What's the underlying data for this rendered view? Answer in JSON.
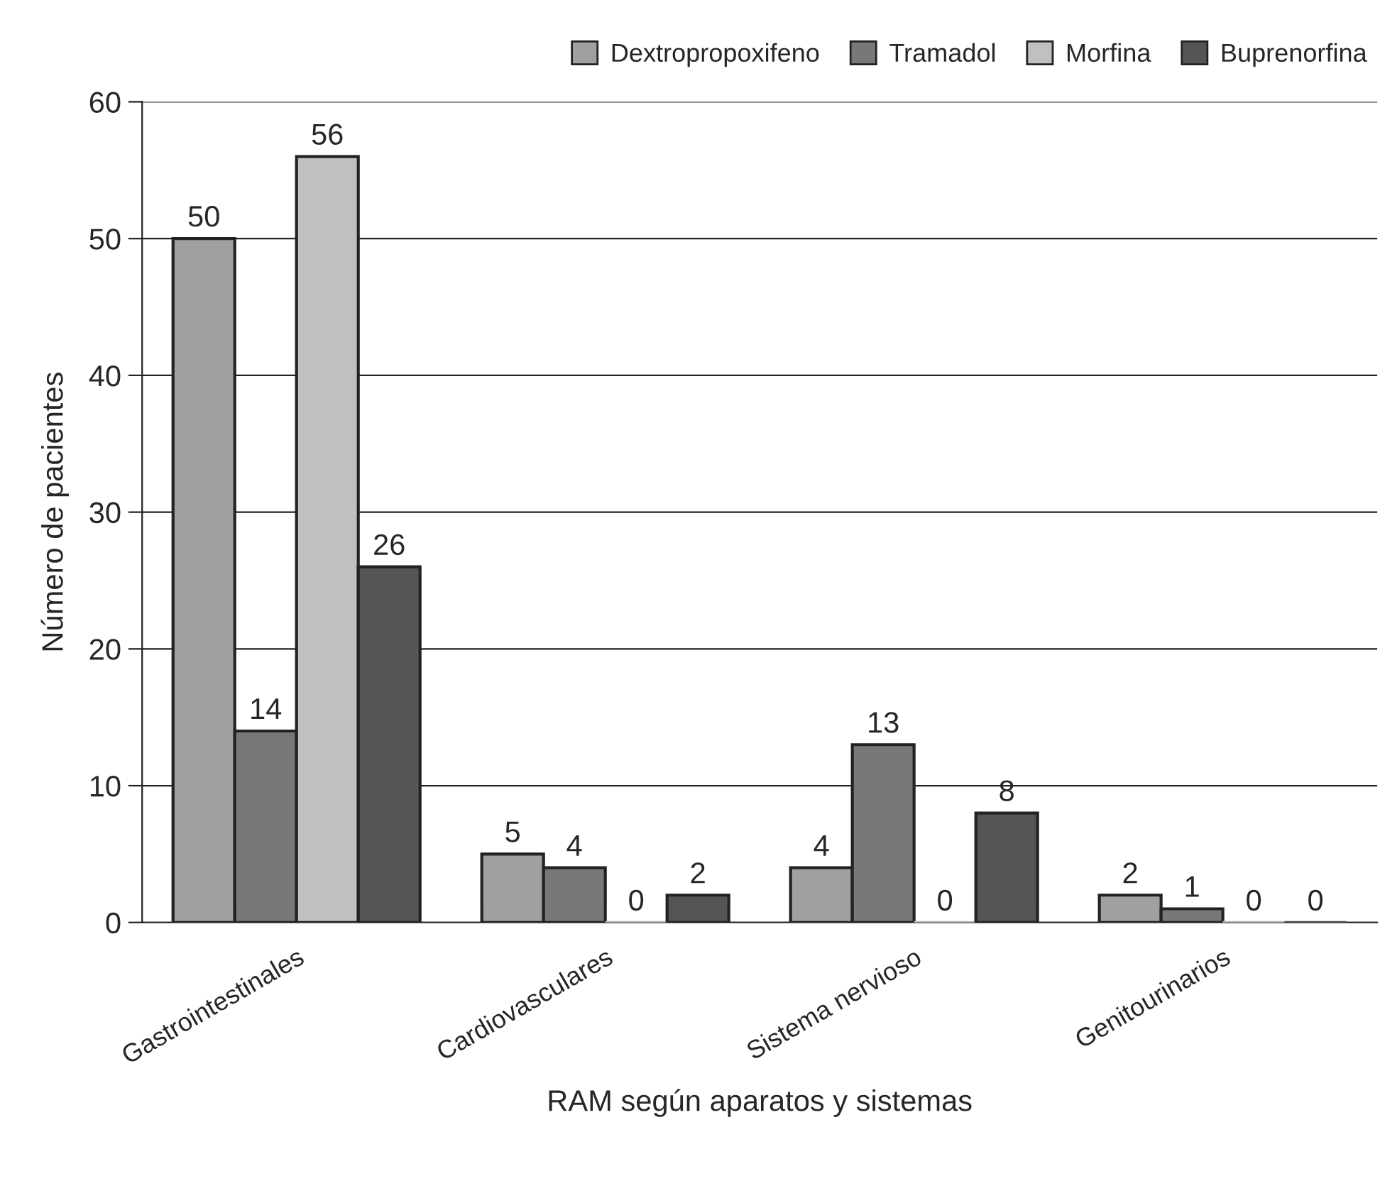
{
  "chart_data": {
    "type": "bar",
    "xlabel": "RAM según aparatos y sistemas",
    "ylabel": "Número de pacientes",
    "categories": [
      "Gastrointestinales",
      "Cardiovasculares",
      "Sistema nervioso",
      "Genitourinarios"
    ],
    "series": [
      {
        "name": "Dextropropoxifeno",
        "color": "#a0a0a0",
        "values": [
          50,
          5,
          4,
          2
        ]
      },
      {
        "name": "Tramadol",
        "color": "#787878",
        "values": [
          14,
          4,
          13,
          1
        ]
      },
      {
        "name": "Morfina",
        "color": "#c0c0c0",
        "values": [
          56,
          0,
          0,
          0
        ]
      },
      {
        "name": "Buprenorfina",
        "color": "#555555",
        "values": [
          26,
          2,
          8,
          0
        ]
      }
    ],
    "ylim": [
      0,
      60
    ],
    "yticks": [
      0,
      10,
      20,
      30,
      40,
      50,
      60
    ],
    "grid": "y",
    "legend": "top right",
    "data_labels": true
  }
}
